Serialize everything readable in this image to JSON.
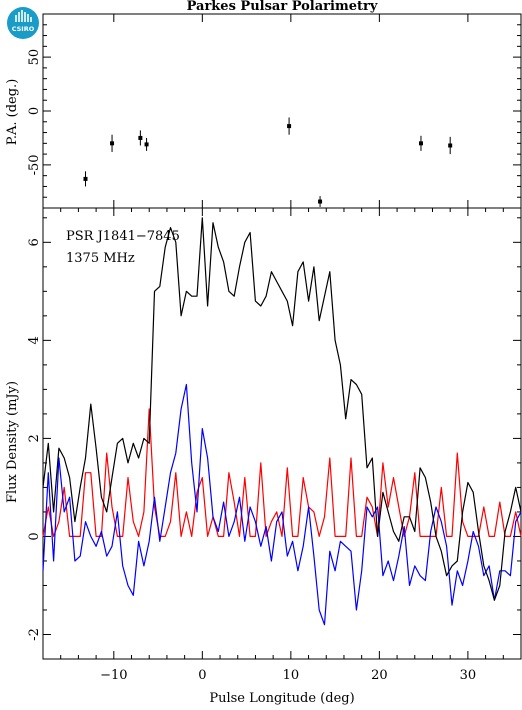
{
  "title": "Parkes Pulsar Polarimetry",
  "logo_text": "CSIRO",
  "chart_data": [
    {
      "type": "scatter",
      "panel": "position-angle",
      "ylabel": "P.A. (deg.)",
      "xlim": [
        -18,
        36
      ],
      "ylim": [
        -90,
        90
      ],
      "yticks": [
        -50,
        0,
        50
      ],
      "points": [
        {
          "x": -13.2,
          "y": -63,
          "err": 7
        },
        {
          "x": -10.2,
          "y": -30,
          "err": 8
        },
        {
          "x": -7.0,
          "y": -25,
          "err": 7
        },
        {
          "x": -6.3,
          "y": -31,
          "err": 6
        },
        {
          "x": 9.8,
          "y": -14,
          "err": 8
        },
        {
          "x": 13.3,
          "y": -84,
          "err": 5
        },
        {
          "x": 24.7,
          "y": -30,
          "err": 7
        },
        {
          "x": 28.0,
          "y": -32,
          "err": 8
        }
      ]
    },
    {
      "type": "line",
      "panel": "flux-profile",
      "xlabel": "Pulse Longitude (deg)",
      "ylabel": "Flux Density (mJy)",
      "xlim": [
        -18,
        36
      ],
      "ylim": [
        -2.5,
        6.7
      ],
      "xticks": [
        -10,
        0,
        10,
        20,
        30
      ],
      "yticks": [
        -2,
        0,
        2,
        4,
        6
      ],
      "annotations": [
        "PSR J1841−7845",
        "1375 MHz"
      ],
      "colors": {
        "total": "#000000",
        "linear": "#ff0000",
        "circular": "#0000ff"
      },
      "x": [
        -18,
        -17.4,
        -16.8,
        -16.2,
        -15.6,
        -15,
        -14.4,
        -13.8,
        -13.2,
        -12.6,
        -12,
        -11.4,
        -10.8,
        -10.2,
        -9.6,
        -9,
        -8.4,
        -7.8,
        -7.2,
        -6.6,
        -6,
        -5.4,
        -4.8,
        -4.2,
        -3.6,
        -3,
        -2.4,
        -1.8,
        -1.2,
        -0.6,
        0,
        0.6,
        1.2,
        1.8,
        2.4,
        3,
        3.6,
        4.2,
        4.8,
        5.4,
        6,
        6.6,
        7.2,
        7.8,
        8.4,
        9,
        9.6,
        10.2,
        10.8,
        11.4,
        12,
        12.6,
        13.2,
        13.8,
        14.4,
        15,
        15.6,
        16.2,
        16.8,
        17.4,
        18,
        18.6,
        19.2,
        19.8,
        20.4,
        21,
        21.6,
        22.2,
        22.8,
        23.4,
        24,
        24.6,
        25.2,
        25.8,
        26.4,
        27,
        27.6,
        28.2,
        28.8,
        29.4,
        30,
        30.6,
        31.2,
        31.8,
        32.4,
        33,
        33.6,
        34.2,
        34.8,
        35.4,
        36
      ],
      "series": [
        {
          "key": "total",
          "values": [
            1.0,
            1.9,
            0.5,
            1.8,
            1.6,
            1.2,
            0.3,
            1.0,
            1.6,
            2.7,
            1.8,
            0.8,
            0.5,
            1.2,
            1.9,
            2.0,
            1.5,
            1.9,
            1.6,
            2.0,
            1.9,
            5.0,
            5.1,
            5.9,
            6.3,
            6.0,
            4.5,
            5.0,
            4.9,
            4.9,
            6.5,
            4.7,
            6.4,
            5.9,
            5.6,
            5.0,
            4.9,
            5.5,
            6.0,
            6.2,
            4.8,
            4.7,
            4.9,
            5.4,
            5.2,
            5.0,
            4.8,
            4.3,
            5.4,
            5.6,
            4.8,
            5.5,
            4.4,
            4.9,
            5.4,
            4.0,
            3.5,
            2.4,
            3.2,
            3.1,
            2.9,
            1.4,
            1.6,
            0.0,
            0.9,
            0.5,
            0.1,
            -0.1,
            0.4,
            0.4,
            0.1,
            1.4,
            1.2,
            0.7,
            0.0,
            -0.3,
            -0.8,
            -0.6,
            -0.5,
            0.5,
            1.1,
            0.9,
            0.1,
            -0.6,
            -0.9,
            -1.3,
            -1.0,
            0.1,
            0.5,
            1.0,
            0.5
          ]
        },
        {
          "key": "linear",
          "values": [
            0.0,
            0.6,
            0.0,
            0.3,
            1.0,
            0.0,
            0.0,
            0.0,
            1.3,
            1.3,
            0.0,
            0.0,
            1.7,
            0.6,
            0.0,
            0.0,
            1.2,
            0.3,
            0.0,
            0.5,
            2.6,
            0.6,
            0.0,
            0.0,
            0.3,
            1.3,
            0.0,
            0.5,
            0.0,
            0.9,
            1.2,
            0.0,
            0.4,
            0.0,
            0.0,
            1.3,
            0.7,
            0.0,
            1.2,
            0.0,
            0.0,
            1.5,
            0.0,
            0.3,
            0.5,
            0.0,
            1.4,
            0.0,
            0.0,
            1.2,
            0.6,
            0.5,
            0.0,
            0.4,
            1.6,
            0.0,
            0.0,
            0.0,
            1.6,
            0.0,
            0.0,
            0.8,
            0.6,
            0.0,
            1.5,
            0.6,
            1.2,
            0.6,
            0.0,
            0.4,
            1.3,
            0.0,
            0.0,
            0.0,
            0.0,
            1.0,
            0.0,
            0.0,
            1.7,
            0.3,
            0.0,
            0.0,
            0.0,
            0.6,
            0.0,
            0.0,
            0.7,
            0.0,
            0.0,
            0.5,
            0.0
          ]
        },
        {
          "key": "circular",
          "values": [
            -0.7,
            1.3,
            -0.5,
            1.6,
            0.5,
            0.8,
            -0.5,
            -0.4,
            0.3,
            0.0,
            -0.2,
            0.1,
            -0.4,
            -0.2,
            0.5,
            -0.6,
            -1.0,
            -1.2,
            -0.1,
            -0.6,
            -0.1,
            0.8,
            -0.1,
            0.6,
            1.3,
            1.7,
            2.6,
            3.1,
            1.5,
            0.5,
            2.2,
            1.6,
            0.4,
            0.1,
            0.7,
            0.0,
            0.3,
            0.8,
            -0.1,
            0.6,
            0.3,
            -0.2,
            0.2,
            -0.5,
            0.3,
            0.5,
            -0.4,
            -0.1,
            -0.7,
            -0.2,
            0.6,
            -0.4,
            -1.5,
            -1.8,
            -0.3,
            -0.7,
            -0.1,
            -0.2,
            -0.3,
            -1.5,
            -0.7,
            0.6,
            0.4,
            0.6,
            -0.8,
            -0.5,
            -0.9,
            -0.4,
            0.2,
            -1.0,
            -0.6,
            -0.8,
            -0.9,
            0.1,
            0.6,
            0.3,
            -0.2,
            -1.4,
            -0.7,
            -1.0,
            -0.5,
            0.1,
            -0.2,
            -0.8,
            -0.6,
            -1.3,
            -0.7,
            -0.7,
            -0.8,
            0.3,
            0.5
          ]
        }
      ]
    }
  ]
}
